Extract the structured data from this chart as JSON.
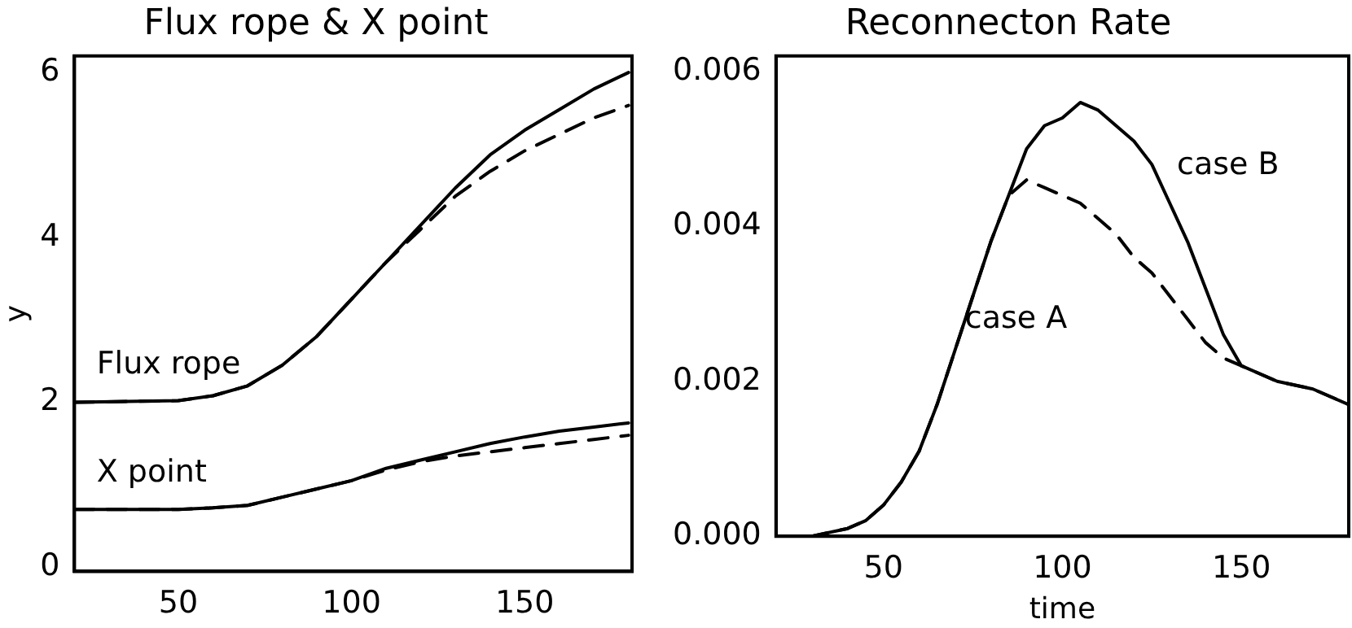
{
  "chart_data": [
    {
      "type": "line",
      "title": "Flux rope & X point",
      "ylabel": "y",
      "xlim": [
        20,
        181
      ],
      "ylim": [
        -0.05,
        6.2
      ],
      "xticks": [
        50,
        100,
        150
      ],
      "yticks": [
        0,
        2,
        4,
        6
      ],
      "grid": false,
      "legend": false,
      "marker": "none",
      "x": [
        20,
        50,
        60,
        70,
        80,
        90,
        100,
        110,
        120,
        130,
        140,
        150,
        160,
        170,
        180
      ],
      "series": [
        {
          "color": "#000000",
          "line_style": "solid",
          "values": [
            2.0,
            2.02,
            2.08,
            2.2,
            2.45,
            2.8,
            3.25,
            3.7,
            4.15,
            4.6,
            5.0,
            5.3,
            5.55,
            5.8,
            6.0
          ]
        },
        {
          "color": "#000000",
          "line_style": "dashed",
          "values": [
            2.0,
            2.02,
            2.08,
            2.2,
            2.45,
            2.8,
            3.25,
            3.7,
            4.1,
            4.5,
            4.8,
            5.05,
            5.25,
            5.45,
            5.6
          ]
        },
        {
          "color": "#000000",
          "line_style": "solid",
          "values": [
            0.7,
            0.7,
            0.72,
            0.75,
            0.85,
            0.95,
            1.05,
            1.2,
            1.3,
            1.4,
            1.5,
            1.58,
            1.65,
            1.7,
            1.75
          ]
        },
        {
          "color": "#000000",
          "line_style": "dashed",
          "values": [
            0.7,
            0.7,
            0.72,
            0.75,
            0.85,
            0.95,
            1.05,
            1.18,
            1.28,
            1.35,
            1.4,
            1.45,
            1.5,
            1.55,
            1.6
          ]
        }
      ],
      "annotations": [
        "Flux rope",
        "X point"
      ]
    },
    {
      "type": "line",
      "title": "Reconnecton Rate",
      "xlabel": "time",
      "xlim": [
        20,
        180
      ],
      "ylim": [
        0,
        0.0062
      ],
      "xticks": [
        50,
        100,
        150
      ],
      "yticks": [
        {
          "value": 0,
          "label": "0.000"
        },
        {
          "value": 0.002,
          "label": "0.002"
        },
        {
          "value": 0.004,
          "label": "0.004"
        },
        {
          "value": 0.006,
          "label": "0.006"
        }
      ],
      "grid": false,
      "legend": false,
      "marker": "none",
      "x": [
        20,
        30,
        40,
        45,
        50,
        55,
        60,
        65,
        70,
        75,
        80,
        85,
        90,
        95,
        100,
        105,
        110,
        115,
        120,
        125,
        130,
        135,
        140,
        145,
        150,
        160,
        170,
        180
      ],
      "series": [
        {
          "color": "#000000",
          "line_style": "solid",
          "values": [
            0,
            0,
            0.0001,
            0.0002,
            0.0004,
            0.0007,
            0.0011,
            0.0017,
            0.0024,
            0.0031,
            0.0038,
            0.0044,
            0.005,
            0.0053,
            0.0054,
            0.0056,
            0.0055,
            0.0053,
            0.0051,
            0.0048,
            0.0043,
            0.0038,
            0.0032,
            0.0026,
            0.0022,
            0.002,
            0.0019,
            0.0017
          ]
        },
        {
          "color": "#000000",
          "line_style": "dashed",
          "values": [
            0,
            0,
            0.0001,
            0.0002,
            0.0004,
            0.0007,
            0.0011,
            0.0017,
            0.0024,
            0.0031,
            0.0038,
            0.0044,
            0.0046,
            0.0045,
            0.0044,
            0.0043,
            0.0041,
            0.0039,
            0.0036,
            0.0034,
            0.0031,
            0.0028,
            0.0025,
            0.0023,
            0.0022,
            0.002,
            0.0019,
            0.0017
          ]
        }
      ],
      "annotations": [
        "case B",
        "case A"
      ]
    }
  ]
}
